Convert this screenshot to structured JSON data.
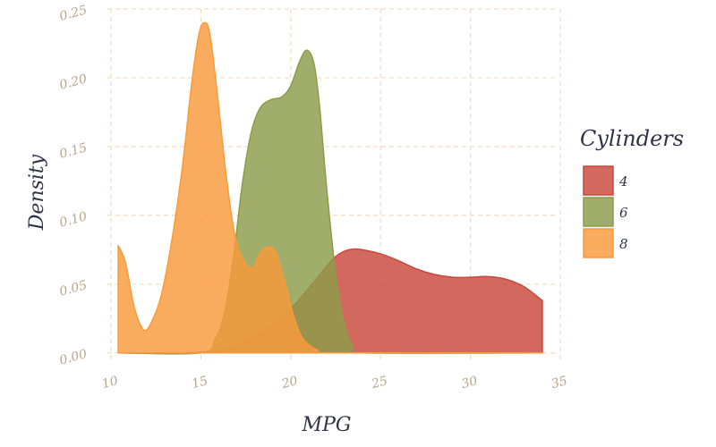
{
  "chart_data": {
    "type": "area",
    "title": "",
    "xlabel": "MPG",
    "ylabel": "Density",
    "xlim": [
      9.8,
      34.9
    ],
    "ylim": [
      -0.006,
      0.25
    ],
    "xticks": [
      10,
      15,
      20,
      25,
      30,
      35
    ],
    "yticks": [
      0.0,
      0.05,
      0.1,
      0.15,
      0.2,
      0.25
    ],
    "xtick_labels": [
      "10",
      "15",
      "20",
      "25",
      "30",
      "35"
    ],
    "ytick_labels": [
      "0.00",
      "0.05",
      "0.10",
      "0.15",
      "0.20",
      "0.25"
    ],
    "grid": true,
    "legend": {
      "title": "Cylinders",
      "position": "right"
    },
    "series": [
      {
        "name": "4",
        "color": "#c9473a",
        "points": [
          [
            10.4,
            0.0
          ],
          [
            14,
            0.0
          ],
          [
            16,
            0.002
          ],
          [
            17,
            0.006
          ],
          [
            18,
            0.012
          ],
          [
            19,
            0.021
          ],
          [
            20,
            0.032
          ],
          [
            21,
            0.047
          ],
          [
            22,
            0.063
          ],
          [
            22.5,
            0.07
          ],
          [
            23,
            0.074
          ],
          [
            23.5,
            0.0755
          ],
          [
            24,
            0.075
          ],
          [
            25,
            0.072
          ],
          [
            26,
            0.067
          ],
          [
            27,
            0.061
          ],
          [
            28,
            0.057
          ],
          [
            29,
            0.055
          ],
          [
            30,
            0.055
          ],
          [
            31,
            0.0555
          ],
          [
            32,
            0.0535
          ],
          [
            33,
            0.048
          ],
          [
            34,
            0.038
          ]
        ]
      },
      {
        "name": "6",
        "color": "#8c9c4a",
        "points": [
          [
            10.4,
            0.0
          ],
          [
            15,
            0.0
          ],
          [
            15.8,
            0.01
          ],
          [
            16.3,
            0.028
          ],
          [
            16.8,
            0.068
          ],
          [
            17.3,
            0.122
          ],
          [
            17.8,
            0.16
          ],
          [
            18.3,
            0.178
          ],
          [
            18.9,
            0.184
          ],
          [
            19.5,
            0.186
          ],
          [
            20,
            0.194
          ],
          [
            20.5,
            0.212
          ],
          [
            20.9,
            0.22
          ],
          [
            21.3,
            0.21
          ],
          [
            21.6,
            0.18
          ],
          [
            22,
            0.12
          ],
          [
            22.5,
            0.058
          ],
          [
            23,
            0.02
          ],
          [
            23.5,
            0.004
          ],
          [
            24,
            0.0
          ],
          [
            34,
            0.0
          ]
        ]
      },
      {
        "name": "8",
        "color": "#f99a3a",
        "points": [
          [
            10.4,
            0.078
          ],
          [
            10.8,
            0.066
          ],
          [
            11.3,
            0.033
          ],
          [
            11.8,
            0.017
          ],
          [
            12.2,
            0.021
          ],
          [
            12.8,
            0.042
          ],
          [
            13.4,
            0.083
          ],
          [
            14,
            0.138
          ],
          [
            14.5,
            0.197
          ],
          [
            14.9,
            0.232
          ],
          [
            15.2,
            0.24
          ],
          [
            15.5,
            0.232
          ],
          [
            15.9,
            0.19
          ],
          [
            16.4,
            0.13
          ],
          [
            16.9,
            0.085
          ],
          [
            17.4,
            0.067
          ],
          [
            17.9,
            0.062
          ],
          [
            18.3,
            0.073
          ],
          [
            18.8,
            0.077
          ],
          [
            19.2,
            0.072
          ],
          [
            19.7,
            0.05
          ],
          [
            20.2,
            0.025
          ],
          [
            20.7,
            0.01
          ],
          [
            21.5,
            0.002
          ],
          [
            22.5,
            0.0
          ],
          [
            34,
            0.0
          ]
        ]
      }
    ]
  }
}
